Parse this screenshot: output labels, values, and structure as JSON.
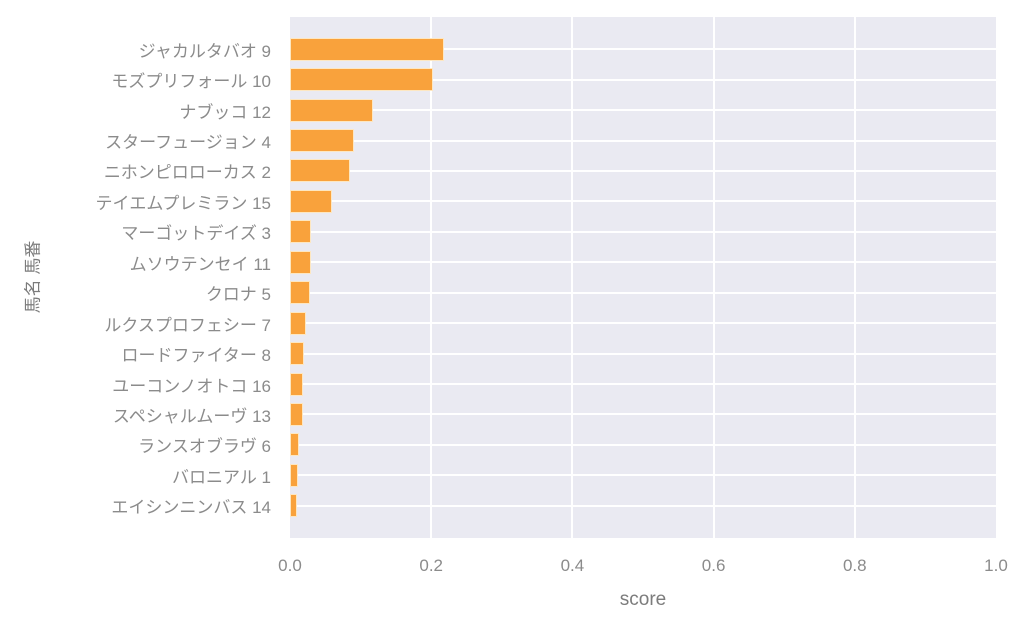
{
  "chart_data": {
    "type": "bar",
    "orientation": "horizontal",
    "title": "",
    "xlabel": "score",
    "ylabel": "馬名 馬番",
    "categories": [
      "ジャカルタバオ 9",
      "モズプリフォール 10",
      "ナブッコ 12",
      "スターフュージョン 4",
      "ニホンピロローカス 2",
      "テイエムプレミラン 15",
      "マーゴットデイズ 3",
      "ムソウテンセイ 11",
      "クロナ 5",
      "ルクスプロフェシー 7",
      "ロードファイター 8",
      "ユーコンノオトコ 16",
      "スペシャルムーヴ 13",
      "ランスオブラヴ 6",
      "バロニアル 1",
      "エイシンニンバス 14"
    ],
    "values": [
      0.218,
      0.202,
      0.117,
      0.091,
      0.085,
      0.06,
      0.03,
      0.03,
      0.028,
      0.022,
      0.02,
      0.019,
      0.019,
      0.013,
      0.012,
      0.01
    ],
    "xlim": [
      0.0,
      1.0
    ],
    "xtick_labels": [
      "0.0",
      "0.2",
      "0.4",
      "0.6",
      "0.8",
      "1.0"
    ],
    "xtick_values": [
      0.0,
      0.2,
      0.4,
      0.6,
      0.8,
      1.0
    ],
    "internal_gridlines_x": [
      0.2,
      0.4,
      0.6,
      0.8
    ],
    "grid": true,
    "legend": false,
    "colors": {
      "bar": "#F9A23C",
      "bar_edge": "#FDE7C2",
      "plot_background": "#EAEAF2",
      "gridline": "#FFFFFF",
      "tick_text": "#8B8B8B",
      "axis_label_text": "#7C7C7C"
    }
  }
}
